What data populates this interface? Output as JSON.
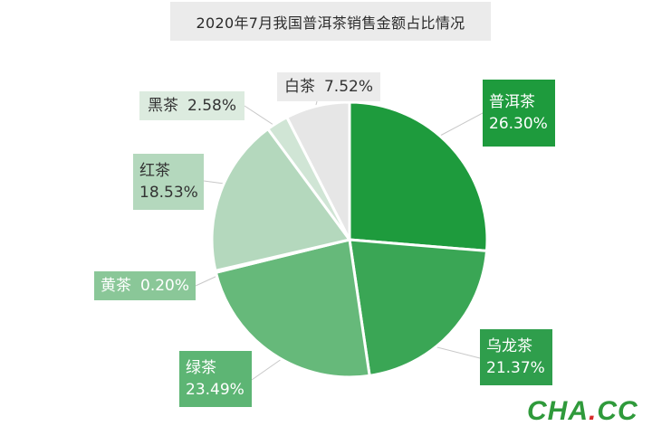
{
  "chart_data": {
    "type": "pie",
    "title": "2020年7月我国普洱茶销售金额占比情况",
    "slices": [
      {
        "name": "普洱茶",
        "value": 26.3,
        "label": "26.30%",
        "color": "#1e9b3d"
      },
      {
        "name": "乌龙茶",
        "value": 21.37,
        "label": "21.37%",
        "color": "#3aa655"
      },
      {
        "name": "绿茶",
        "value": 23.49,
        "label": "23.49%",
        "color": "#66b97a"
      },
      {
        "name": "黄茶",
        "value": 0.2,
        "label": "0.20%",
        "color": "#8ac798"
      },
      {
        "name": "红茶",
        "value": 18.53,
        "label": "18.53%",
        "color": "#b4d8bd"
      },
      {
        "name": "黑茶",
        "value": 2.58,
        "label": "2.58%",
        "color": "#d0e5d5"
      },
      {
        "name": "白茶",
        "value": 7.52,
        "label": "7.52%",
        "color": "#e6e6e6"
      }
    ]
  },
  "watermark": {
    "main": "CHA",
    "dot": ".",
    "suffix": "CC"
  }
}
